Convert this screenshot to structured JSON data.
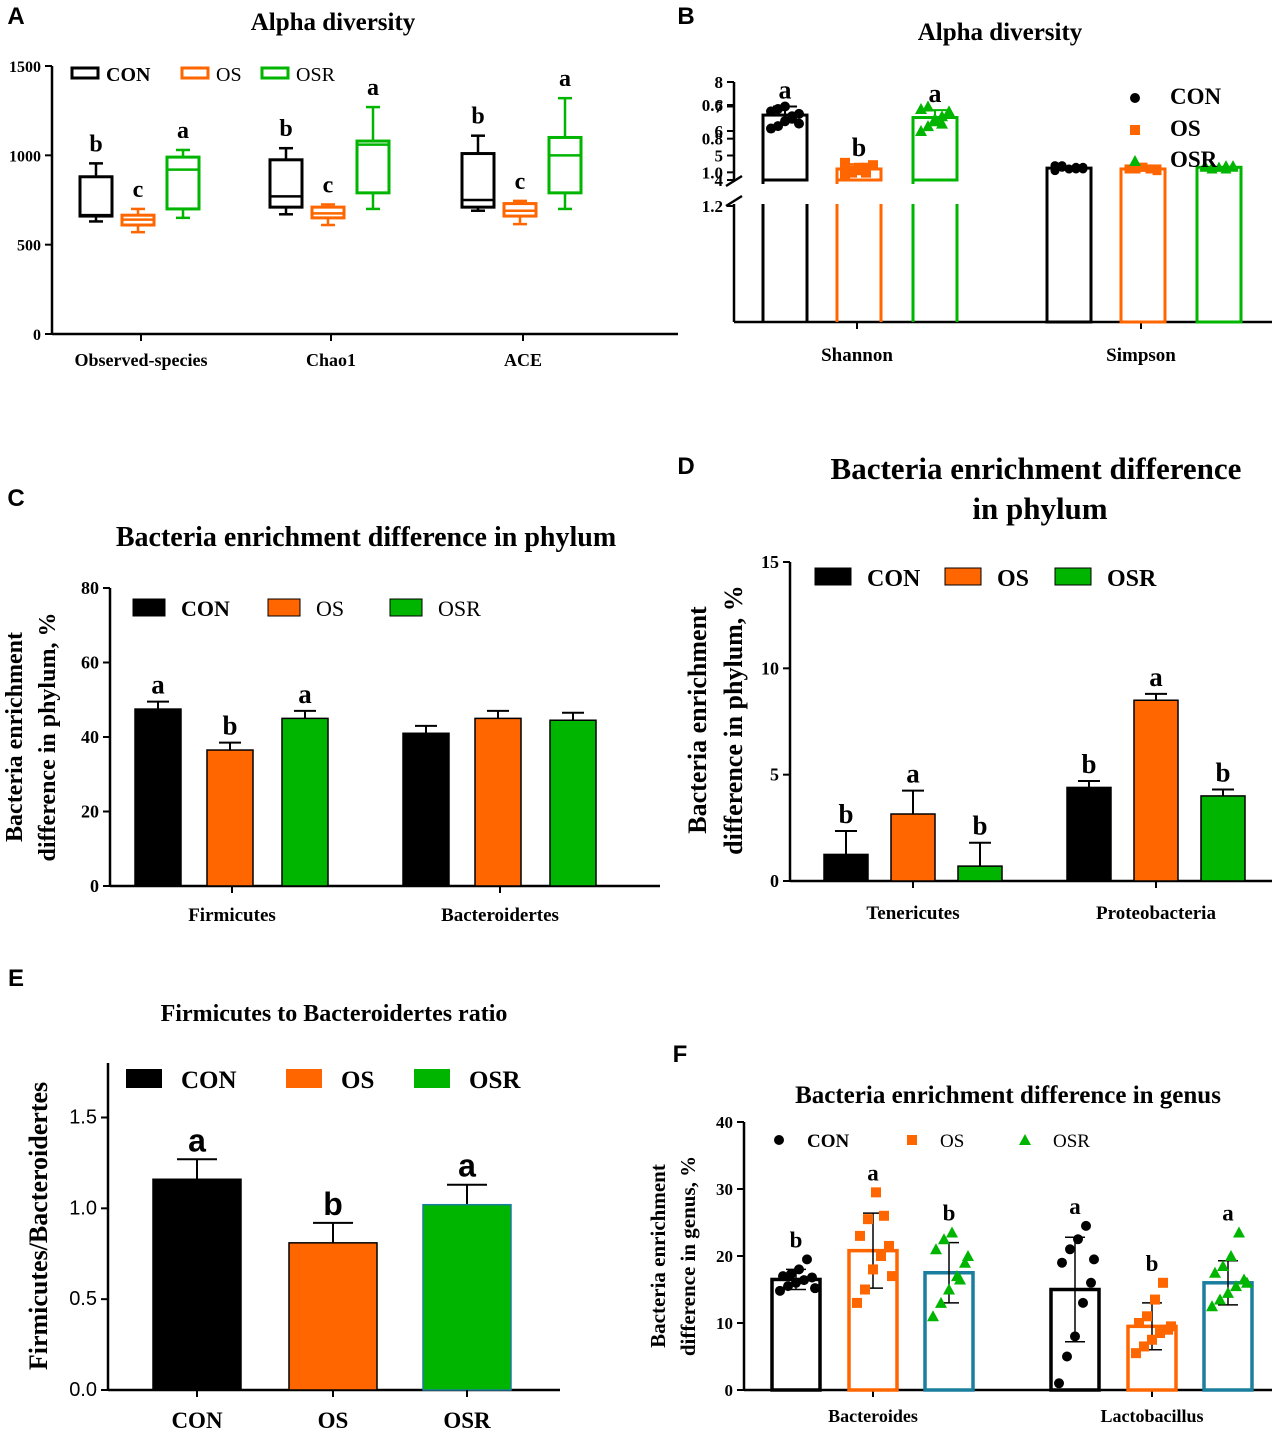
{
  "colors": {
    "con": "#000000",
    "os": "#ff6600",
    "osr": "#00b500",
    "osr_f_bar": "#1a7f9e"
  },
  "legend": {
    "con": "CON",
    "os": "OS",
    "osr": "OSR"
  },
  "panel_labels": {
    "A": "A",
    "B": "B",
    "C": "C",
    "D": "D",
    "E": "E",
    "F": "F"
  },
  "chart_data": [
    {
      "id": "A",
      "type": "box",
      "title": "Alpha diversity",
      "categories": [
        "Observed-species",
        "Chao1",
        "ACE"
      ],
      "ylim": [
        0,
        1500
      ],
      "yticks": [
        0,
        500,
        1000,
        1500
      ],
      "series": [
        {
          "name": "CON",
          "boxes": [
            {
              "min": 630,
              "q1": 660,
              "median": 665,
              "q3": 880,
              "max": 955,
              "letter": "b"
            },
            {
              "min": 670,
              "q1": 710,
              "median": 770,
              "q3": 975,
              "max": 1040,
              "letter": "b"
            },
            {
              "min": 690,
              "q1": 710,
              "median": 750,
              "q3": 1010,
              "max": 1110,
              "letter": "b"
            }
          ]
        },
        {
          "name": "OS",
          "boxes": [
            {
              "min": 570,
              "q1": 610,
              "median": 640,
              "q3": 665,
              "max": 700,
              "letter": "c"
            },
            {
              "min": 610,
              "q1": 650,
              "median": 675,
              "q3": 710,
              "max": 725,
              "letter": "c"
            },
            {
              "min": 615,
              "q1": 660,
              "median": 690,
              "q3": 730,
              "max": 745,
              "letter": "c"
            }
          ]
        },
        {
          "name": "OSR",
          "boxes": [
            {
              "min": 650,
              "q1": 700,
              "median": 920,
              "q3": 990,
              "max": 1030,
              "letter": "a"
            },
            {
              "min": 700,
              "q1": 790,
              "median": 1060,
              "q3": 1080,
              "max": 1270,
              "letter": "a"
            },
            {
              "min": 700,
              "q1": 790,
              "median": 1000,
              "q3": 1100,
              "max": 1320,
              "letter": "a"
            }
          ]
        }
      ]
    },
    {
      "id": "B",
      "type": "bar-scatter-broken-axis",
      "title": "Alpha diversity",
      "categories": [
        "Shannon",
        "Simpson"
      ],
      "yticks_lower": [
        0.6,
        0.8,
        1.0,
        1.2
      ],
      "yticks_upper": [
        4,
        5,
        6,
        7,
        8
      ],
      "series": [
        {
          "name": "CON",
          "values": [
            6.65,
            0.975
          ],
          "sd": [
            0.35,
            0.01
          ],
          "letters": [
            "a",
            ""
          ],
          "points": [
            [
              6.1,
              6.2,
              6.4,
              6.6,
              6.7,
              6.8,
              6.9,
              7.0,
              6.5,
              6.3
            ],
            [
              0.96,
              0.97,
              0.98,
              0.98,
              0.97,
              0.99,
              0.96,
              0.98,
              0.97,
              0.98
            ]
          ]
        },
        {
          "name": "OS",
          "values": [
            4.45,
            0.98
          ],
          "sd": [
            0.2,
            0.005
          ],
          "letters": [
            "b",
            ""
          ],
          "points": [
            [
              4.2,
              4.3,
              4.4,
              4.5,
              4.6,
              4.7,
              4.4,
              4.5,
              4.3,
              4.6
            ],
            [
              0.98,
              0.98,
              0.97,
              0.98,
              0.99,
              0.98,
              0.98,
              0.97,
              0.98,
              0.98
            ]
          ]
        },
        {
          "name": "OSR",
          "values": [
            6.55,
            0.97
          ],
          "sd": [
            0.3,
            0.01
          ],
          "letters": [
            "a",
            ""
          ],
          "points": [
            [
              6.0,
              6.2,
              6.4,
              6.6,
              6.8,
              6.9,
              7.0,
              6.5,
              6.3,
              6.7
            ],
            [
              0.96,
              0.97,
              0.97,
              0.98,
              0.96,
              0.97,
              0.98,
              0.97,
              0.96,
              0.97
            ]
          ]
        }
      ]
    },
    {
      "id": "C",
      "type": "bar",
      "title": "Bacteria enrichment difference in phylum",
      "ylabel_line1": "Bacteria enrichment",
      "ylabel_line2": "difference in phylum, %",
      "categories": [
        "Firmicutes",
        "Bacteroidertes"
      ],
      "ylim": [
        0,
        80
      ],
      "yticks": [
        0,
        20,
        40,
        60,
        80
      ],
      "series": [
        {
          "name": "CON",
          "values": [
            47.5,
            41.0
          ],
          "err": [
            2.0,
            2.0
          ],
          "letters": [
            "a",
            ""
          ]
        },
        {
          "name": "OS",
          "values": [
            36.5,
            45.0
          ],
          "err": [
            2.0,
            2.0
          ],
          "letters": [
            "b",
            ""
          ]
        },
        {
          "name": "OSR",
          "values": [
            45.0,
            44.5
          ],
          "err": [
            2.0,
            2.0
          ],
          "letters": [
            "a",
            ""
          ]
        }
      ]
    },
    {
      "id": "D",
      "type": "bar",
      "title_line1": "Bacteria enrichment difference",
      "title_line2": "in phylum",
      "ylabel_line1": "Bacteria enrichment",
      "ylabel_line2": "difference in phylum, %",
      "categories": [
        "Tenericutes",
        "Proteobacteria"
      ],
      "ylim": [
        0,
        15
      ],
      "yticks": [
        0,
        5,
        10,
        15
      ],
      "series": [
        {
          "name": "CON",
          "values": [
            1.25,
            4.4
          ],
          "err": [
            1.1,
            0.3
          ],
          "letters": [
            "b",
            "b"
          ]
        },
        {
          "name": "OS",
          "values": [
            3.15,
            8.5
          ],
          "err": [
            1.1,
            0.3
          ],
          "letters": [
            "a",
            "a"
          ]
        },
        {
          "name": "OSR",
          "values": [
            0.7,
            4.0
          ],
          "err": [
            1.1,
            0.3
          ],
          "letters": [
            "b",
            "b"
          ]
        }
      ]
    },
    {
      "id": "E",
      "type": "bar",
      "title": "Firmicutes to Bacteroidertes ratio",
      "ylabel": "Firmicutes/Bacteroidertes",
      "categories": [
        "CON",
        "OS",
        "OSR"
      ],
      "ylim": [
        0,
        1.8
      ],
      "yticks": [
        0.0,
        0.5,
        1.0,
        1.5
      ],
      "values": [
        1.16,
        0.81,
        1.02
      ],
      "err": [
        0.11,
        0.11,
        0.11
      ],
      "letters": [
        "a",
        "b",
        "a"
      ]
    },
    {
      "id": "F",
      "type": "bar-scatter",
      "title": "Bacteria enrichment difference in genus",
      "ylabel_line1": "Bacteria enrichment",
      "ylabel_line2": "difference in genus, %",
      "categories": [
        "Bacteroides",
        "Lactobacillus"
      ],
      "ylim": [
        0,
        40
      ],
      "yticks": [
        0,
        10,
        20,
        30,
        40
      ],
      "series": [
        {
          "name": "CON",
          "values": [
            16.5,
            15.0
          ],
          "sd": [
            1.5,
            7.8
          ],
          "letters": [
            "b",
            "a"
          ],
          "points": [
            [
              14.8,
              15.5,
              16.0,
              16.4,
              16.8,
              17.0,
              17.3,
              18.0,
              19.5,
              15.2
            ],
            [
              1.0,
              5.0,
              8.0,
              13.0,
              16.0,
              19.0,
              21.0,
              22.5,
              24.5,
              19.5
            ]
          ]
        },
        {
          "name": "OS",
          "values": [
            20.8,
            9.5
          ],
          "sd": [
            5.6,
            3.5
          ],
          "letters": [
            "a",
            "b"
          ],
          "points": [
            [
              13.0,
              15.0,
              18.0,
              20.0,
              21.5,
              23.0,
              25.5,
              29.5,
              26.0,
              17.0
            ],
            [
              5.5,
              6.5,
              7.5,
              8.5,
              9.0,
              10.0,
              11.0,
              13.5,
              16.0,
              9.5
            ]
          ]
        },
        {
          "name": "OSR",
          "values": [
            17.5,
            16.0
          ],
          "sd": [
            4.5,
            3.3
          ],
          "letters": [
            "b",
            "a"
          ],
          "points": [
            [
              11.0,
              13.0,
              15.0,
              17.0,
              19.0,
              21.0,
              22.5,
              23.5,
              16.5,
              20.0
            ],
            [
              12.5,
              13.5,
              14.5,
              15.5,
              16.5,
              17.5,
              18.5,
              20.0,
              23.5,
              16.0
            ]
          ]
        }
      ]
    }
  ]
}
